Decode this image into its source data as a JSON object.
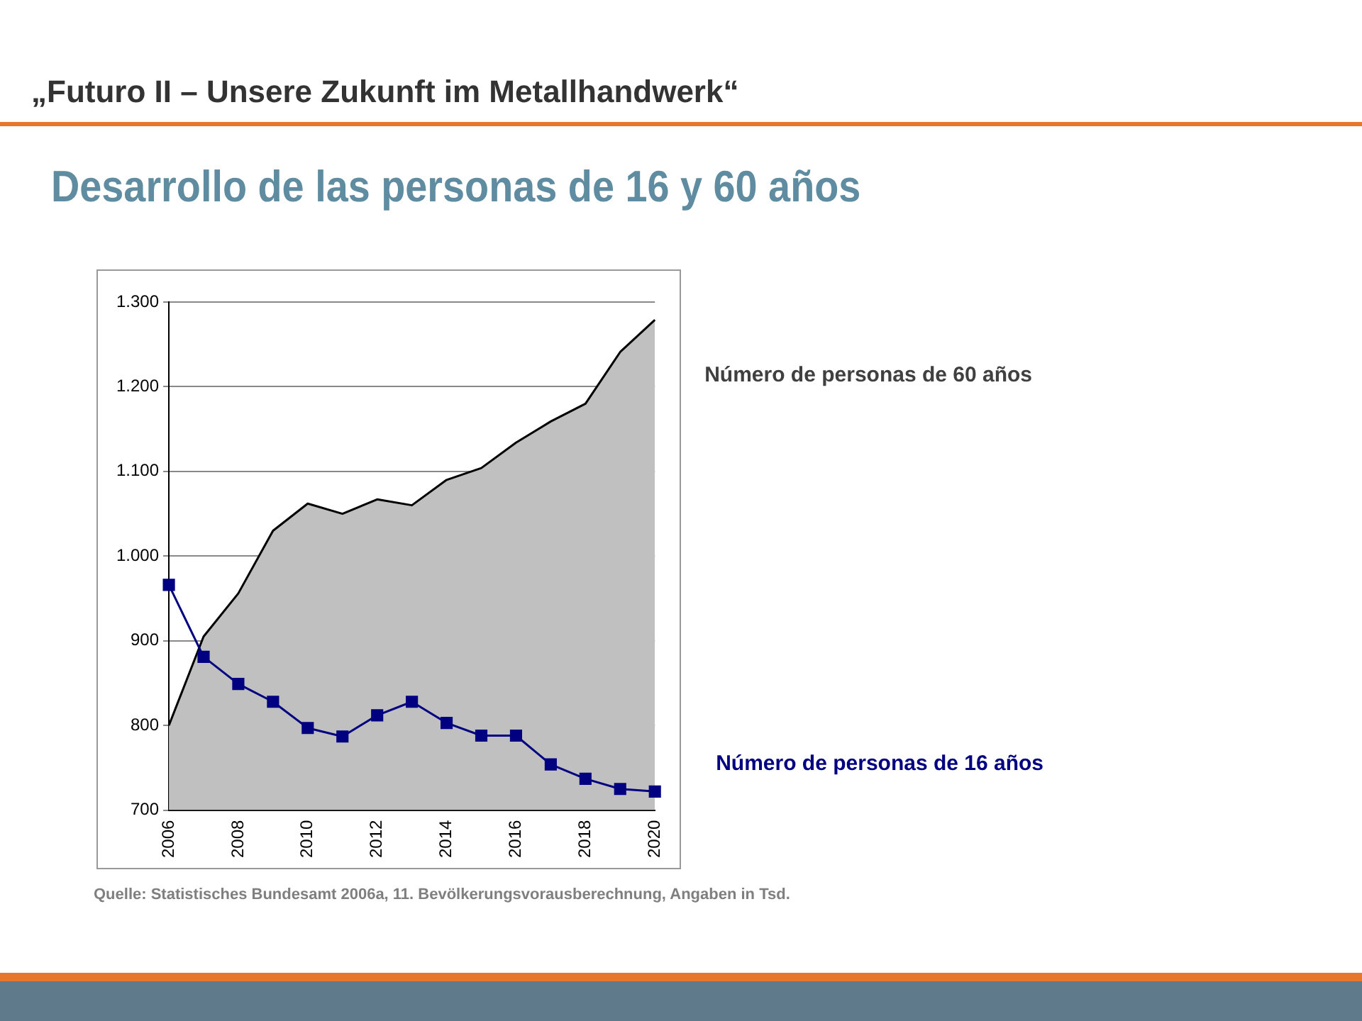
{
  "chart_data": {
    "type": "line",
    "title": "„Futuro II – Unsere Zukunft im Metallhandwerk“",
    "subtitle": "Desarrollo de las personas de 16 y 60 años",
    "x": [
      2006,
      2007,
      2008,
      2009,
      2010,
      2011,
      2012,
      2013,
      2014,
      2015,
      2016,
      2017,
      2018,
      2019,
      2020
    ],
    "series": [
      {
        "name": "Número de personas de 60 años",
        "type": "area",
        "color": "#c0c0c0",
        "marker": "none",
        "values": [
          800,
          905,
          956,
          1030,
          1062,
          1050,
          1067,
          1060,
          1090,
          1104,
          1134,
          1159,
          1180,
          1241,
          1279
        ]
      },
      {
        "name": "Número de personas de 16 años",
        "type": "line",
        "color": "#000080",
        "marker": "square",
        "values": [
          966,
          881,
          849,
          828,
          797,
          787,
          812,
          828,
          803,
          788,
          788,
          754,
          737,
          725,
          722
        ]
      }
    ],
    "xlim": [
      2006,
      2020
    ],
    "xticks": [
      2006,
      2008,
      2010,
      2012,
      2014,
      2016,
      2018,
      2020
    ],
    "ylim": [
      700,
      1300
    ],
    "yticks": [
      {
        "value": 700,
        "label": "700"
      },
      {
        "value": 800,
        "label": "800"
      },
      {
        "value": 900,
        "label": "900"
      },
      {
        "value": 1000,
        "label": "1.000"
      },
      {
        "value": 1100,
        "label": "1.100"
      },
      {
        "value": 1200,
        "label": "1.200"
      },
      {
        "value": 1300,
        "label": "1.300"
      }
    ],
    "grid": "y",
    "legend": false,
    "annotations": [
      "Quelle: Statistisches Bundesamt 2006a, 11. Bevölkerungsvorausberechnung,  Angaben in Tsd."
    ]
  }
}
